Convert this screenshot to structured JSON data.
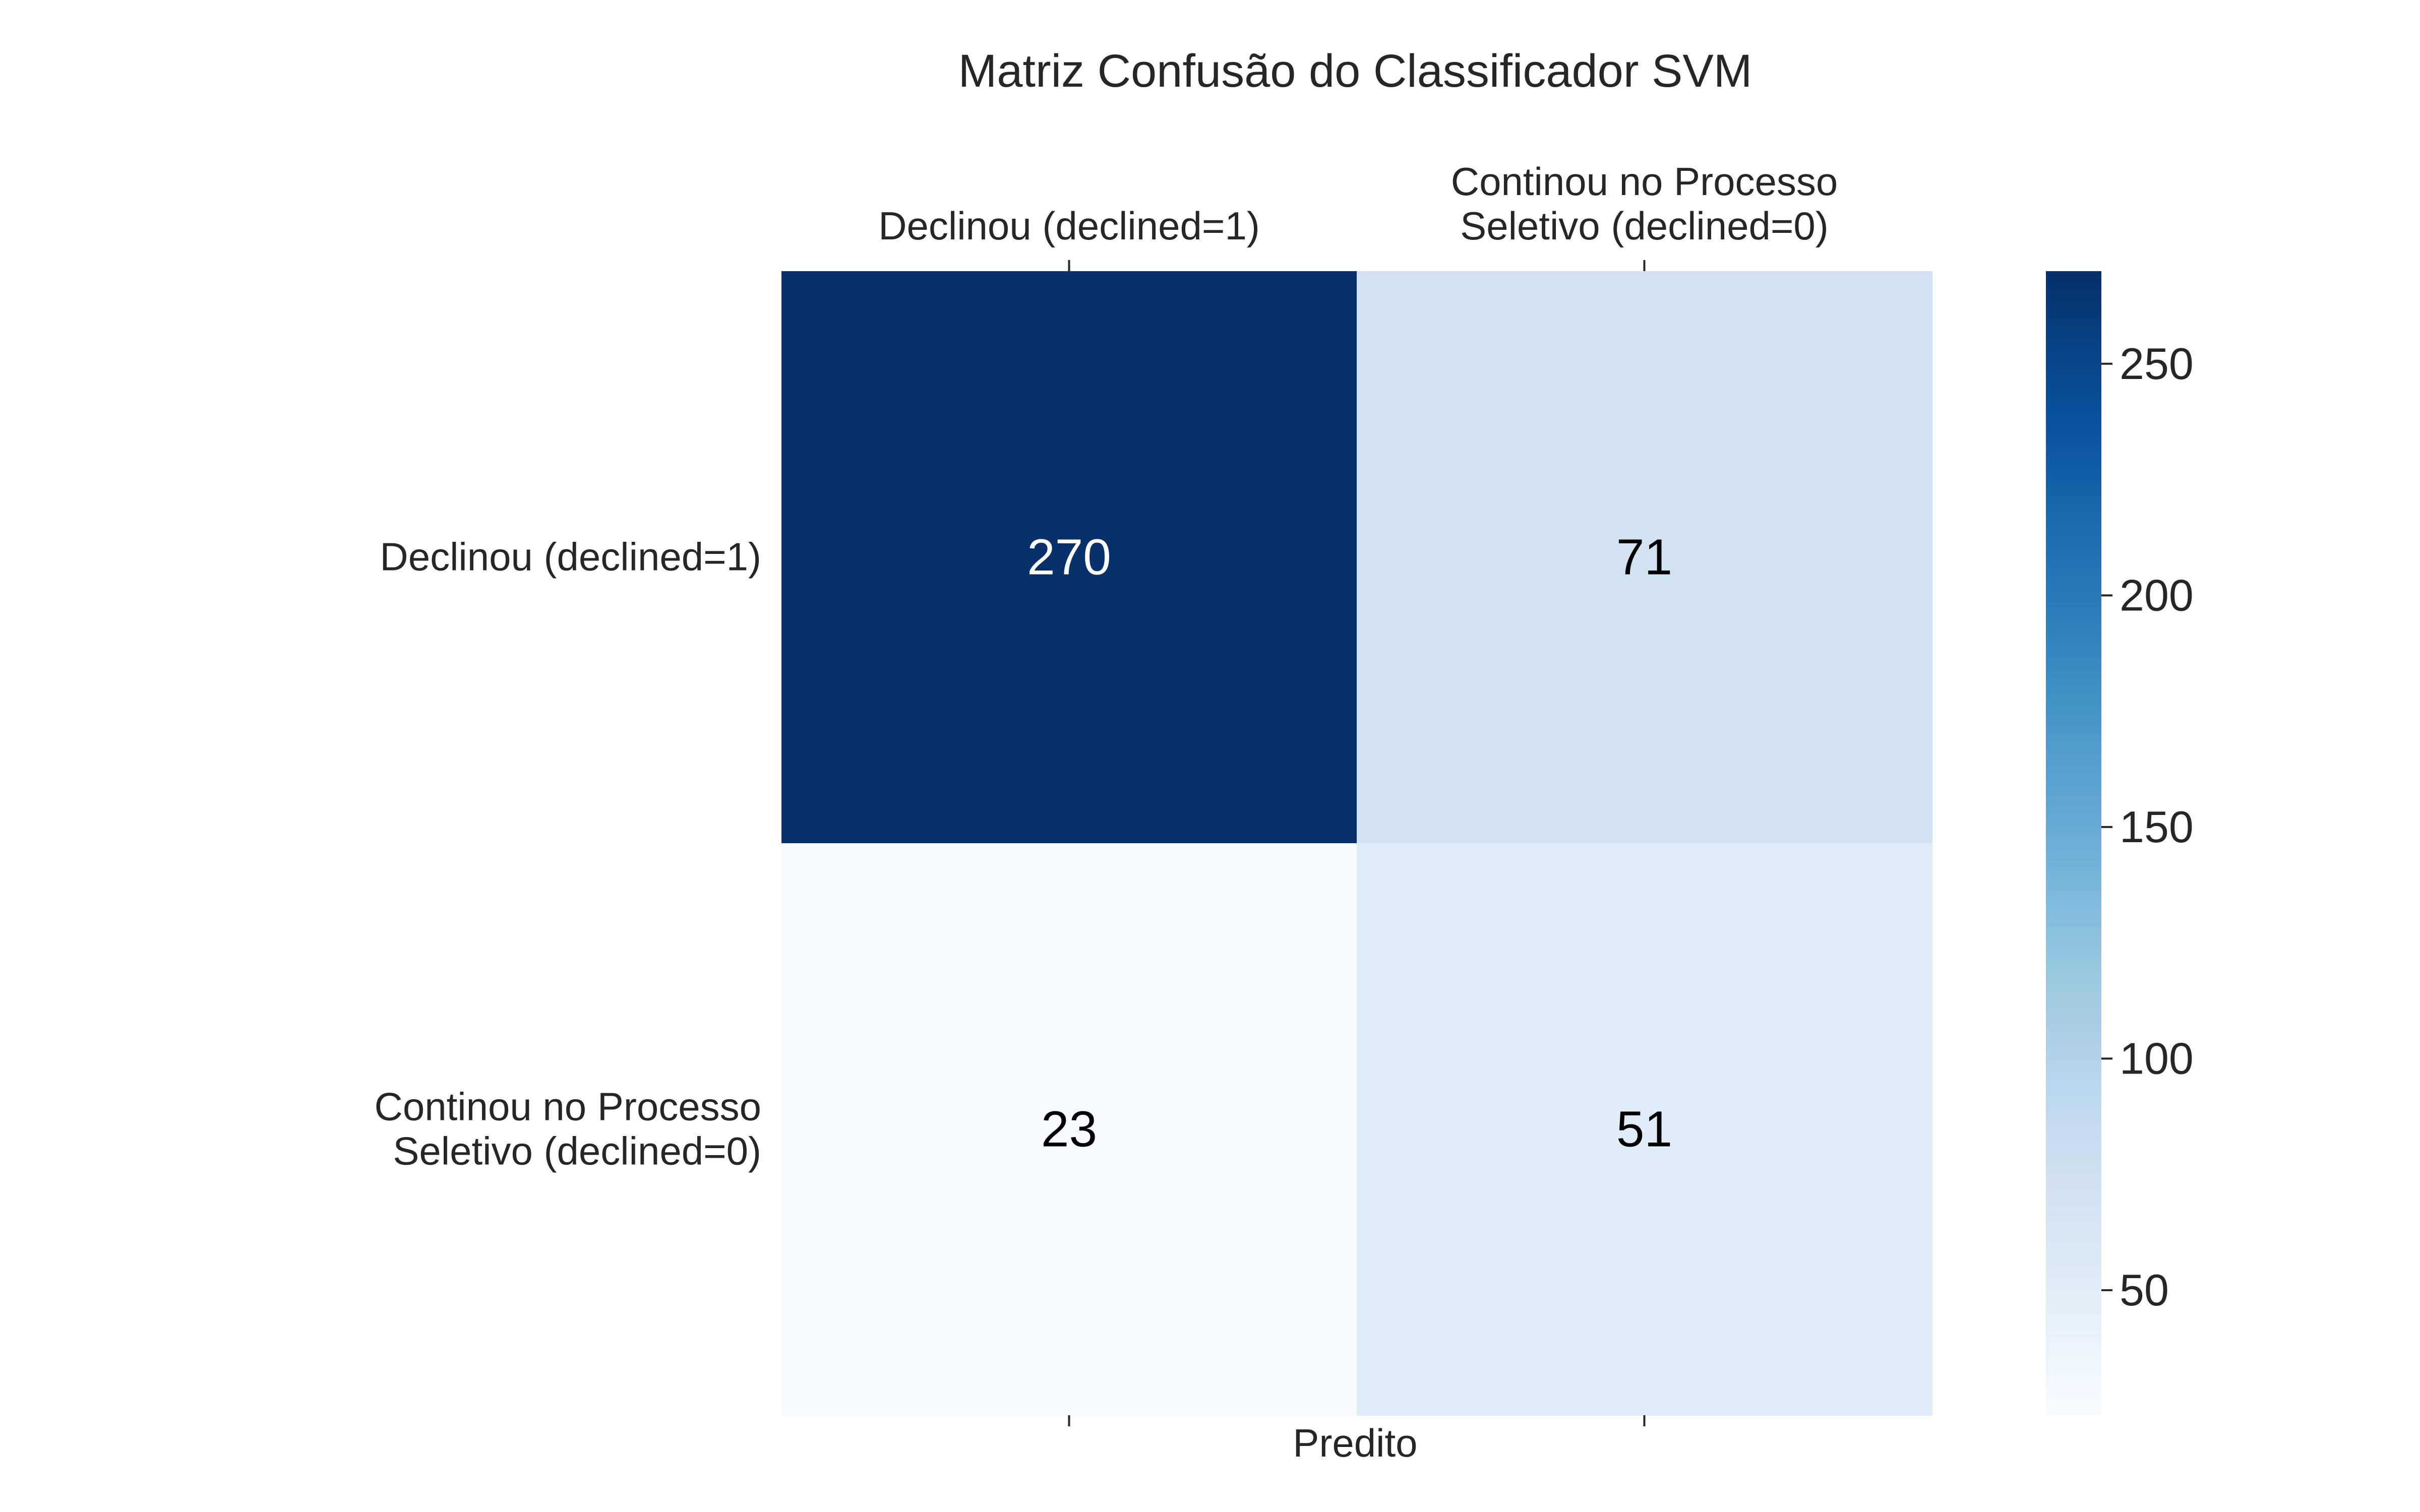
{
  "chart_data": {
    "type": "heatmap",
    "title": "Matriz Confusão do Classificador SVM",
    "xlabel": "Predito",
    "ylabel": "",
    "x_categories": [
      [
        "Declinou (declined=1)"
      ],
      [
        "Continou no Processo",
        "Seletivo (declined=0)"
      ]
    ],
    "y_categories": [
      [
        "Declinou (declined=1)"
      ],
      [
        "Continou no Processo",
        "Seletivo (declined=0)"
      ]
    ],
    "values": [
      [
        270,
        71
      ],
      [
        23,
        51
      ]
    ],
    "colormap": "Blues",
    "vmin": 23,
    "vmax": 270,
    "colorbar_ticks": [
      50,
      100,
      150,
      200,
      250
    ],
    "x_axis_position": "top",
    "grid": false,
    "colors": {
      "low": "#f7fbff",
      "high": "#08306b",
      "text_dark": "#000000",
      "text_light": "#ffffff"
    }
  }
}
